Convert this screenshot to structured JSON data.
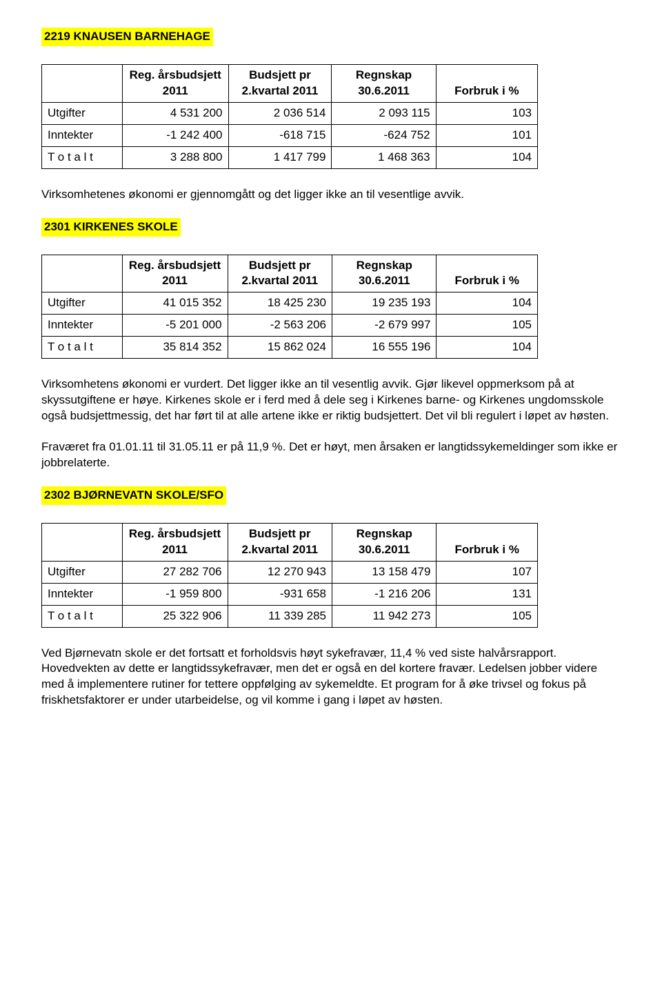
{
  "sections": [
    {
      "id": "s2219",
      "heading": "2219   KNAUSEN BARNEHAGE",
      "table": {
        "columns": [
          "",
          "Reg. årsbudsjett 2011",
          "Budsjett pr 2.kvartal 2011",
          "Regnskap 30.6.2011",
          "Forbruk i %"
        ],
        "rows": [
          [
            "Utgifter",
            "4 531 200",
            "2 036 514",
            "2 093 115",
            "103"
          ],
          [
            "Inntekter",
            "-1 242 400",
            "-618 715",
            "-624 752",
            "101"
          ],
          [
            "T o t a l t",
            "3 288 800",
            "1 417 799",
            "1 468 363",
            "104"
          ]
        ]
      },
      "paragraphs": [
        "Virksomhetenes økonomi er gjennomgått og det ligger ikke an til vesentlige avvik."
      ]
    },
    {
      "id": "s2301",
      "heading": "2301   KIRKENES SKOLE",
      "table": {
        "columns": [
          "",
          "Reg. årsbudsjett 2011",
          "Budsjett pr 2.kvartal 2011",
          "Regnskap 30.6.2011",
          "Forbruk i %"
        ],
        "rows": [
          [
            "Utgifter",
            "41 015 352",
            "18 425 230",
            "19 235 193",
            "104"
          ],
          [
            "Inntekter",
            "-5 201 000",
            "-2 563 206",
            "-2 679 997",
            "105"
          ],
          [
            "T o t a l t",
            "35 814 352",
            "15 862 024",
            "16 555 196",
            "104"
          ]
        ]
      },
      "paragraphs": [
        "Virksomhetens økonomi er vurdert. Det ligger ikke an til vesentlig avvik. Gjør likevel oppmerksom på at skyssutgiftene er høye. Kirkenes skole er i ferd med å dele seg i Kirkenes barne- og Kirkenes ungdomsskole også budsjettmessig, det har ført til at alle artene ikke er riktig budsjettert. Det vil bli regulert i løpet av høsten.",
        "Fraværet fra 01.01.11 til 31.05.11 er på 11,9 %. Det er høyt, men årsaken er langtidssykemeldinger som ikke er jobbrelaterte."
      ]
    },
    {
      "id": "s2302",
      "heading": "2302   BJØRNEVATN SKOLE/SFO",
      "table": {
        "columns": [
          "",
          "Reg. årsbudsjett 2011",
          "Budsjett pr 2.kvartal 2011",
          "Regnskap 30.6.2011",
          "Forbruk i %"
        ],
        "rows": [
          [
            "Utgifter",
            "27 282 706",
            "12 270 943",
            "13 158 479",
            "107"
          ],
          [
            "Inntekter",
            "-1 959 800",
            "-931 658",
            "-1 216 206",
            "131"
          ],
          [
            "T o t a l t",
            "25 322 906",
            "11 339 285",
            "11 942 273",
            "105"
          ]
        ]
      },
      "paragraphs": [
        "Ved Bjørnevatn skole er det fortsatt et forholdsvis høyt sykefravær, 11,4 % ved siste halvårsrapport. Hovedvekten av dette er langtidssykefravær, men det er også en del kortere fravær. Ledelsen jobber videre med å implementere rutiner for tettere oppfølging av sykemeldte. Et program for å øke trivsel og fokus på friskhetsfaktorer er under utarbeidelse, og vil komme i gang i løpet av høsten."
      ]
    }
  ]
}
